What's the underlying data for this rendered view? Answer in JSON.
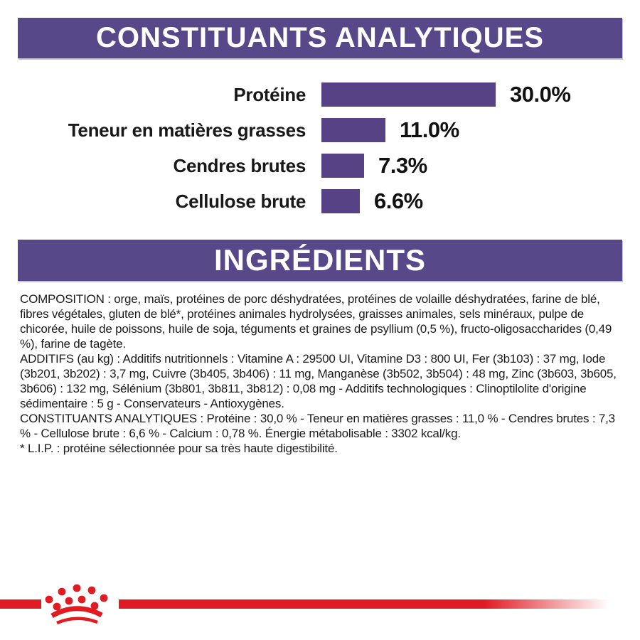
{
  "colors": {
    "banner_purple": "#574889",
    "bar_purple": "#564285",
    "brand_red": "#e01b22",
    "text": "#1c1c1b"
  },
  "sections": {
    "analytical": {
      "title": "CONSTITUANTS ANALYTIQUES"
    },
    "ingredients": {
      "title": "INGRÉDIENTS"
    }
  },
  "chart_data": {
    "type": "bar",
    "orientation": "horizontal",
    "title": "CONSTITUANTS ANALYTIQUES",
    "categories": [
      "Protéine",
      "Teneur en matières grasses",
      "Cendres brutes",
      "Cellulose brute"
    ],
    "values": [
      30.0,
      11.0,
      7.3,
      6.6
    ],
    "value_labels": [
      "30.0%",
      "11.0%",
      "7.3%",
      "6.6%"
    ],
    "unit": "%",
    "xlim": [
      0,
      30
    ],
    "bar_color": "#564285",
    "grid": false,
    "legend": false
  },
  "body": {
    "paragraphs": [
      "COMPOSITION : orge, maïs, protéines de porc déshydratées, protéines de volaille déshydratées, farine de blé, fibres végétales, gluten de blé*, protéines animales hydrolysées, graisses animales, sels minéraux, pulpe de chicorée, huile de poissons, huile de soja, téguments et graines de psyllium (0,5 %), fructo-oligosaccharides (0,49 %), farine de tagète.",
      "ADDITIFS (au kg) : Additifs nutritionnels : Vitamine A : 29500 UI, Vitamine D3 : 800 UI, Fer (3b103) : 37 mg, Iode (3b201, 3b202) : 3,7 mg, Cuivre (3b405, 3b406) : 11 mg, Manganèse (3b502, 3b504) : 48 mg, Zinc (3b603, 3b605, 3b606) : 132 mg, Sélénium (3b801, 3b811, 3b812) : 0,08 mg - Additifs technologiques : Clinoptilolite d'origine sédimentaire : 5 g - Conservateurs - Antioxygènes.",
      "CONSTITUANTS ANALYTIQUES : Protéine : 30,0 % - Teneur en matières grasses : 11,0 % - Cendres brutes : 7,3 % - Cellulose brute : 6,6 % - Calcium : 0,78 %. Énergie métabolisable : 3302 kcal/kg.",
      "* L.I.P. : protéine sélectionnée pour sa très haute digestibilité."
    ]
  },
  "footer": {
    "logo_icon": "royal-canin-crown"
  }
}
